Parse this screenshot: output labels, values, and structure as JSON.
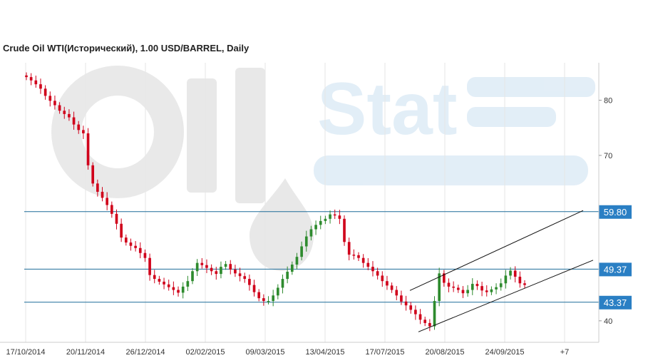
{
  "chart_data": {
    "type": "candlestick",
    "title": "Crude Oil WTI(Исторический), 1.00 USD/BARREL, Daily",
    "watermark": {
      "left": "Oil",
      "right": "Stat"
    },
    "colors": {
      "up": "#2e8b2e",
      "down": "#d0021b",
      "level_line": "#1f6d99",
      "level_label_bg": "#2a7fc4",
      "grid": "#e6e6e6",
      "channel": "#111111"
    },
    "y_ticks": [
      40,
      70,
      80
    ],
    "ylim": [
      36.1,
      86.8
    ],
    "x_ticks": [
      "17/10/2014",
      "20/11/2014",
      "26/12/2014",
      "02/02/2015",
      "09/03/2015",
      "13/04/2015",
      "17/07/2015",
      "20/08/2015",
      "24/09/2015",
      "+7"
    ],
    "levels": [
      {
        "value": 59.8,
        "label": "59.80"
      },
      {
        "value": 49.37,
        "label": "49.37"
      },
      {
        "value": 43.37,
        "label": "43.37"
      }
    ],
    "channel": {
      "upper": [
        [
          0,
          45.5
        ],
        [
          1,
          60.0
        ]
      ],
      "lower": [
        [
          0,
          38.0
        ],
        [
          1,
          51.0
        ]
      ]
    },
    "closes": [
      84.2,
      83.6,
      82.9,
      82.1,
      80.8,
      79.9,
      79.1,
      78.1,
      77.5,
      76.9,
      75.6,
      74.6,
      74.0,
      68.2,
      64.9,
      63.4,
      62.3,
      61.0,
      59.4,
      57.6,
      55.1,
      54.2,
      53.6,
      53.2,
      52.3,
      51.4,
      48.3,
      47.6,
      47.1,
      46.6,
      46.1,
      45.6,
      45.1,
      46.2,
      47.2,
      49.0,
      50.5,
      50.1,
      49.6,
      49.0,
      48.5,
      49.8,
      50.3,
      49.3,
      48.6,
      48.1,
      47.6,
      46.5,
      45.2,
      44.1,
      43.6,
      43.6,
      44.6,
      46.0,
      47.6,
      48.9,
      50.2,
      51.6,
      53.5,
      55.3,
      56.6,
      57.4,
      58.1,
      58.5,
      59.3,
      59.1,
      58.5,
      54.3,
      52.0,
      51.9,
      51.4,
      50.5,
      49.8,
      49.0,
      48.2,
      47.2,
      46.4,
      45.6,
      44.6,
      43.5,
      42.8,
      42.0,
      41.2,
      40.2,
      39.6,
      39.0,
      43.6,
      48.6,
      46.9,
      46.2,
      46.0,
      45.6,
      45.0,
      45.6,
      46.7,
      46.3,
      45.5,
      45.2,
      45.7,
      46.1,
      46.8,
      48.2,
      49.1,
      48.0,
      46.8,
      46.5
    ]
  }
}
